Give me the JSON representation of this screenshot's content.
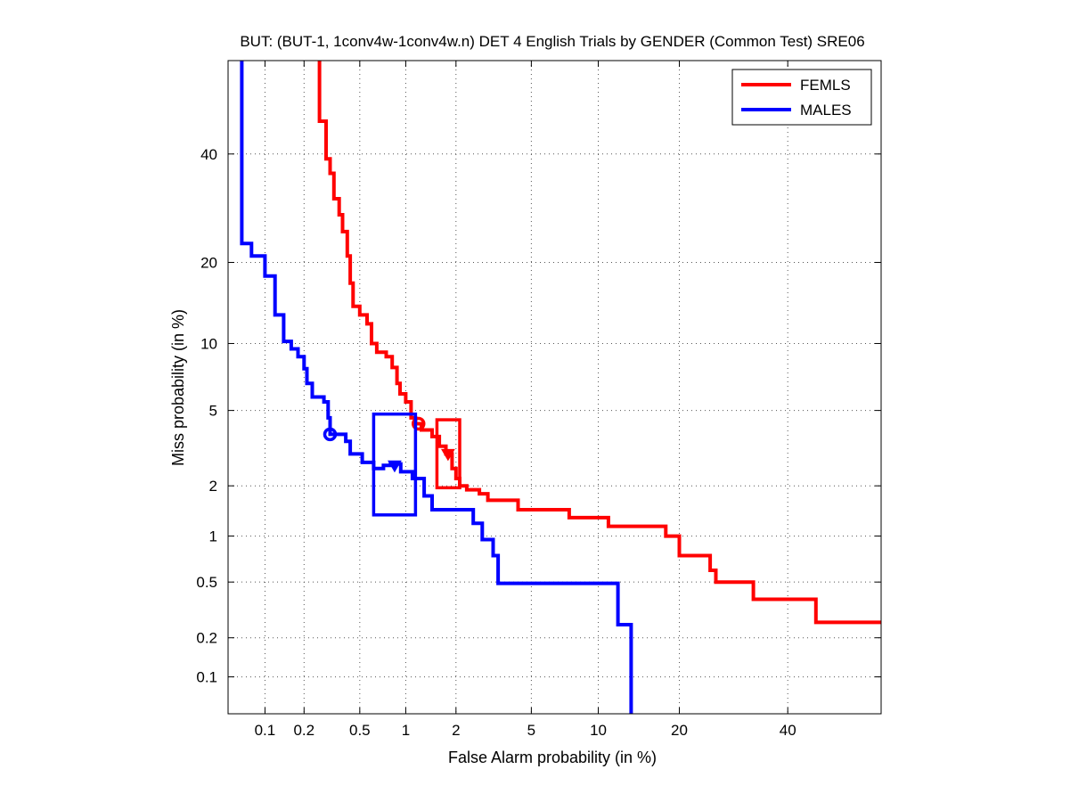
{
  "chart_data": {
    "type": "line",
    "scale": "normal-deviate (DET)",
    "title": "BUT: (BUT-1, 1conv4w-1conv4w.n) DET 4 English Trials by GENDER (Common Test) SRE06",
    "xlabel": "False Alarm probability (in %)",
    "ylabel": "Miss probability (in %)",
    "xlim": [
      0.05,
      60
    ],
    "ylim": [
      0.05,
      60
    ],
    "x_ticks": [
      0.1,
      0.2,
      0.5,
      1,
      2,
      5,
      10,
      20,
      40
    ],
    "x_tick_labels": [
      "0.1",
      "0.2",
      "0.5",
      "1",
      "2",
      "5",
      "10",
      "20",
      "40"
    ],
    "y_ticks": [
      0.1,
      0.2,
      0.5,
      1,
      2,
      5,
      10,
      20,
      40
    ],
    "y_tick_labels": [
      "0.1",
      "0.2",
      "0.5",
      "1",
      "2",
      "5",
      "10",
      "20",
      "40"
    ],
    "grid": true,
    "legend_position": "top-right",
    "series": [
      {
        "name": "FEMLS",
        "color": "#ff0000",
        "points": [
          [
            0.26,
            60
          ],
          [
            0.26,
            47
          ],
          [
            0.29,
            47
          ],
          [
            0.29,
            39
          ],
          [
            0.31,
            39
          ],
          [
            0.31,
            36
          ],
          [
            0.33,
            36
          ],
          [
            0.33,
            31
          ],
          [
            0.36,
            31
          ],
          [
            0.36,
            28
          ],
          [
            0.38,
            28
          ],
          [
            0.38,
            25
          ],
          [
            0.41,
            25
          ],
          [
            0.41,
            21
          ],
          [
            0.43,
            21
          ],
          [
            0.43,
            17
          ],
          [
            0.45,
            17
          ],
          [
            0.45,
            14
          ],
          [
            0.5,
            14
          ],
          [
            0.5,
            13
          ],
          [
            0.56,
            13
          ],
          [
            0.56,
            12
          ],
          [
            0.6,
            12
          ],
          [
            0.6,
            10
          ],
          [
            0.65,
            10
          ],
          [
            0.65,
            9.2
          ],
          [
            0.75,
            9.2
          ],
          [
            0.75,
            8.8
          ],
          [
            0.82,
            8.8
          ],
          [
            0.82,
            7.9
          ],
          [
            0.88,
            7.9
          ],
          [
            0.88,
            6.7
          ],
          [
            0.92,
            6.7
          ],
          [
            0.92,
            6.0
          ],
          [
            1.0,
            6.0
          ],
          [
            1.0,
            5.5
          ],
          [
            1.08,
            5.5
          ],
          [
            1.08,
            4.6
          ],
          [
            1.15,
            4.6
          ],
          [
            1.15,
            4.3
          ],
          [
            1.25,
            4.3
          ],
          [
            1.25,
            4.0
          ],
          [
            1.45,
            4.0
          ],
          [
            1.45,
            3.7
          ],
          [
            1.6,
            3.7
          ],
          [
            1.6,
            3.3
          ],
          [
            1.75,
            3.3
          ],
          [
            1.75,
            3.0
          ],
          [
            1.9,
            3.0
          ],
          [
            1.9,
            2.5
          ],
          [
            2.0,
            2.5
          ],
          [
            2.0,
            2.2
          ],
          [
            2.1,
            2.2
          ],
          [
            2.1,
            2.0
          ],
          [
            2.3,
            2.0
          ],
          [
            2.3,
            1.9
          ],
          [
            2.7,
            1.9
          ],
          [
            2.7,
            1.8
          ],
          [
            3.0,
            1.8
          ],
          [
            3.0,
            1.65
          ],
          [
            4.3,
            1.65
          ],
          [
            4.3,
            1.45
          ],
          [
            7.5,
            1.45
          ],
          [
            7.5,
            1.3
          ],
          [
            11.0,
            1.3
          ],
          [
            11.0,
            1.15
          ],
          [
            18.0,
            1.15
          ],
          [
            18.0,
            1.0
          ],
          [
            20.0,
            1.0
          ],
          [
            20.0,
            0.75
          ],
          [
            25.0,
            0.75
          ],
          [
            25.0,
            0.6
          ],
          [
            26.0,
            0.6
          ],
          [
            26.0,
            0.5
          ],
          [
            33.0,
            0.5
          ],
          [
            33.0,
            0.38
          ],
          [
            46.0,
            0.38
          ],
          [
            46.0,
            0.26
          ],
          [
            60.0,
            0.26
          ]
        ],
        "min_dcf_point": [
          1.2,
          4.3
        ],
        "actual_dcf_point": [
          1.8,
          3.0
        ],
        "confidence_box": {
          "x": [
            1.55,
            2.1
          ],
          "y": [
            1.95,
            4.5
          ]
        }
      },
      {
        "name": "MALES",
        "color": "#0000ff",
        "points": [
          [
            0.065,
            60
          ],
          [
            0.065,
            23
          ],
          [
            0.078,
            23
          ],
          [
            0.078,
            21
          ],
          [
            0.1,
            21
          ],
          [
            0.1,
            18
          ],
          [
            0.12,
            18
          ],
          [
            0.12,
            13
          ],
          [
            0.14,
            13
          ],
          [
            0.14,
            10.2
          ],
          [
            0.16,
            10.2
          ],
          [
            0.16,
            9.5
          ],
          [
            0.18,
            9.5
          ],
          [
            0.18,
            8.8
          ],
          [
            0.2,
            8.8
          ],
          [
            0.2,
            7.8
          ],
          [
            0.21,
            7.8
          ],
          [
            0.21,
            6.7
          ],
          [
            0.23,
            6.7
          ],
          [
            0.23,
            5.8
          ],
          [
            0.28,
            5.8
          ],
          [
            0.28,
            5.5
          ],
          [
            0.3,
            5.5
          ],
          [
            0.3,
            4.6
          ],
          [
            0.31,
            4.6
          ],
          [
            0.31,
            3.8
          ],
          [
            0.4,
            3.8
          ],
          [
            0.4,
            3.5
          ],
          [
            0.43,
            3.5
          ],
          [
            0.43,
            3.0
          ],
          [
            0.52,
            3.0
          ],
          [
            0.52,
            2.7
          ],
          [
            0.62,
            2.7
          ],
          [
            0.62,
            2.5
          ],
          [
            0.72,
            2.5
          ],
          [
            0.72,
            2.6
          ],
          [
            0.8,
            2.6
          ],
          [
            0.8,
            2.65
          ],
          [
            0.93,
            2.65
          ],
          [
            0.93,
            2.4
          ],
          [
            1.1,
            2.4
          ],
          [
            1.1,
            2.2
          ],
          [
            1.3,
            2.2
          ],
          [
            1.3,
            1.75
          ],
          [
            1.45,
            1.75
          ],
          [
            1.45,
            1.45
          ],
          [
            2.5,
            1.45
          ],
          [
            2.5,
            1.2
          ],
          [
            2.8,
            1.2
          ],
          [
            2.8,
            0.95
          ],
          [
            3.2,
            0.95
          ],
          [
            3.2,
            0.75
          ],
          [
            3.4,
            0.75
          ],
          [
            3.4,
            0.49
          ],
          [
            12.0,
            0.49
          ],
          [
            12.0,
            0.25
          ],
          [
            13.5,
            0.25
          ],
          [
            13.5,
            0.05
          ]
        ],
        "min_dcf_point": [
          0.31,
          3.8
        ],
        "actual_dcf_point": [
          0.85,
          2.6
        ],
        "confidence_box": {
          "x": [
            0.62,
            1.15
          ],
          "y": [
            1.35,
            4.8
          ]
        }
      }
    ]
  }
}
